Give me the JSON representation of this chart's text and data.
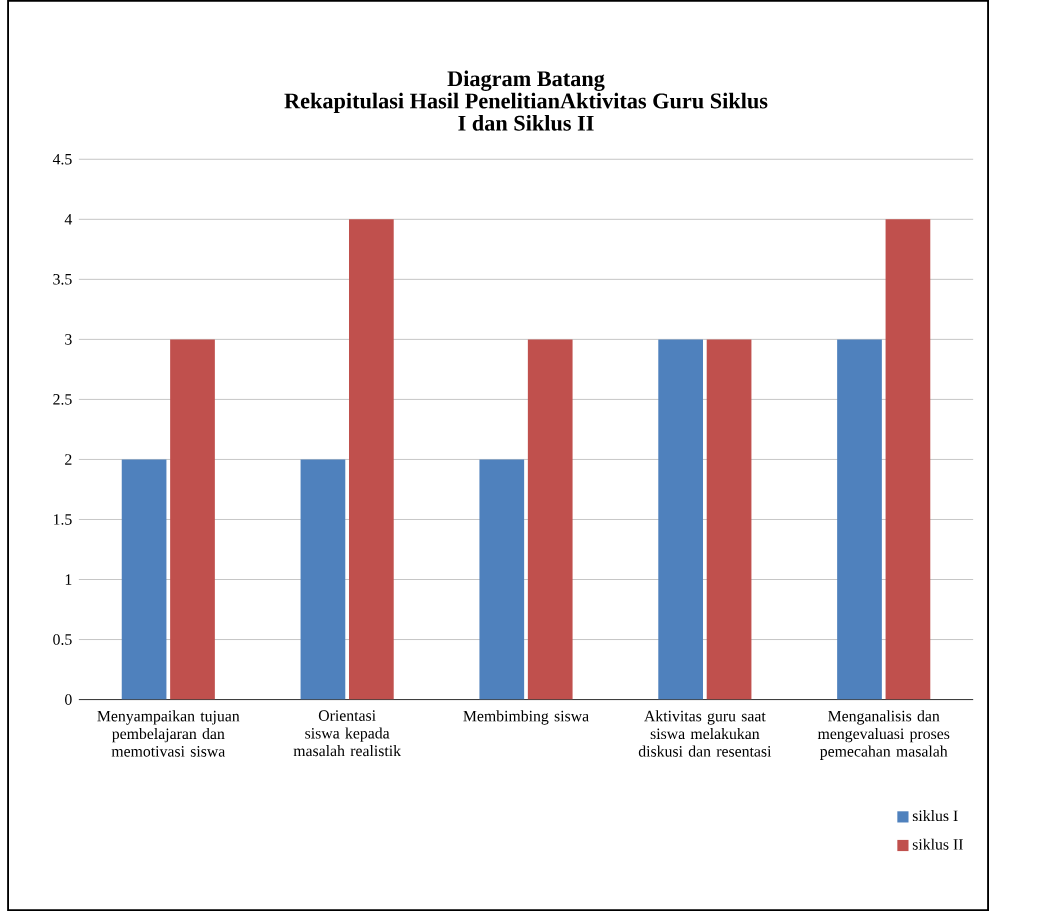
{
  "chart_data": {
    "type": "bar",
    "title": "Diagram Batang",
    "subtitle": "Rekapitulasi Hasil PenelitianAktivitas  Guru Siklus I dan Siklus II",
    "categories": [
      "Menyampaikan tujuan pembelajaran dan memotivasi siswa",
      "Orientasi siswa kepada masalah realistik",
      "Membimbing siswa",
      "Aktivitas guru saat siswa melakukan diskusi dan resentasi",
      "Menganalisis dan mengevaluasi proses pemecahan masalah"
    ],
    "series": [
      {
        "name": "siklus I",
        "color": "#4f81bd",
        "values": [
          2,
          2,
          2,
          3,
          3
        ]
      },
      {
        "name": "siklus II",
        "color": "#c0504d",
        "values": [
          3,
          4,
          3,
          3,
          4
        ]
      }
    ],
    "ylim": [
      0,
      4.5
    ],
    "yticks": [
      0,
      0.5,
      1,
      1.5,
      2,
      2.5,
      3,
      3.5,
      4,
      4.5
    ],
    "grid": "y",
    "legend": "bottom right"
  }
}
